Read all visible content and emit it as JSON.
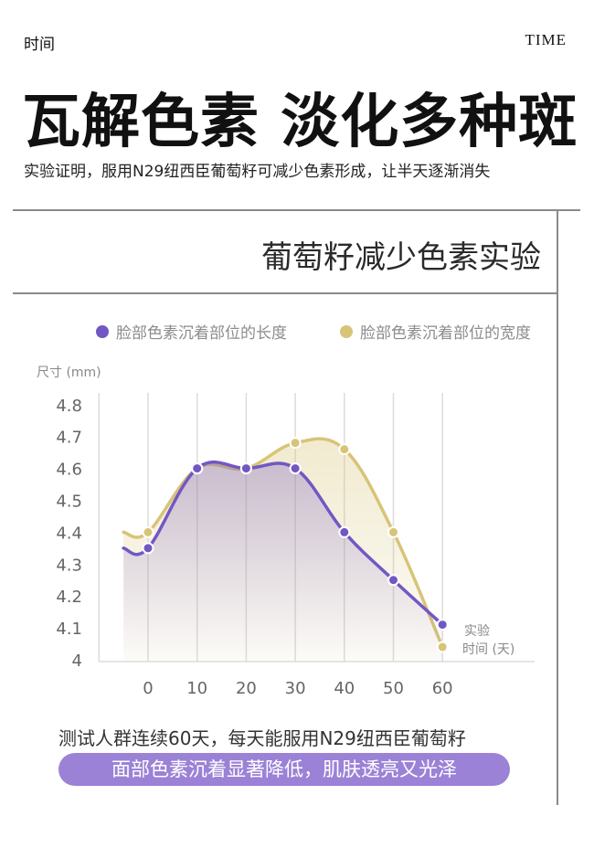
{
  "header": {
    "left_label": "时间",
    "right_label": "TIME"
  },
  "headline": "瓦解色素 淡化多种斑",
  "subline": "实验证明，服用N29纽西臣葡萄籽可减少色素形成，让半天逐渐消失",
  "panel_title": "葡萄籽减少色素实验",
  "colors": {
    "purple": "#7257c4",
    "gold": "#d8c477",
    "pill": "#9b82d6"
  },
  "chart_data": {
    "type": "line",
    "title": "葡萄籽减少色素实验",
    "ylabel": "尺寸 (mm)",
    "xlabel": "实验时间 (天)",
    "xlabel_lines": [
      "实验",
      "时间 (天)"
    ],
    "x": [
      0,
      10,
      20,
      30,
      40,
      50,
      60
    ],
    "xlim": [
      -10,
      65
    ],
    "ylim": [
      4.0,
      4.8
    ],
    "yticks": [
      4.8,
      4.7,
      4.6,
      4.5,
      4.4,
      4.3,
      4.2,
      4.1,
      4
    ],
    "ytick_labels": [
      "4.8",
      "4.7",
      "4.6",
      "4.5",
      "4.4",
      "4.3",
      "4.2",
      "4.1",
      "4"
    ],
    "xtick_labels": [
      "0",
      "10",
      "20",
      "30",
      "40",
      "50",
      "60"
    ],
    "grid": "vertical",
    "legend_position": "top",
    "series": [
      {
        "name": "脸部色素沉着部位的长度",
        "color": "#7257c4",
        "values": [
          4.35,
          4.6,
          4.6,
          4.6,
          4.4,
          4.25,
          4.11
        ]
      },
      {
        "name": "脸部色素沉着部位的宽度",
        "color": "#d8c477",
        "values": [
          4.4,
          4.6,
          4.6,
          4.68,
          4.66,
          4.4,
          4.04
        ]
      }
    ]
  },
  "footer": {
    "note": "测试人群连续60天，每天能服用N29纽西臣葡萄籽",
    "highlight": "面部色素沉着显著降低，肌肤透亮又光泽"
  }
}
